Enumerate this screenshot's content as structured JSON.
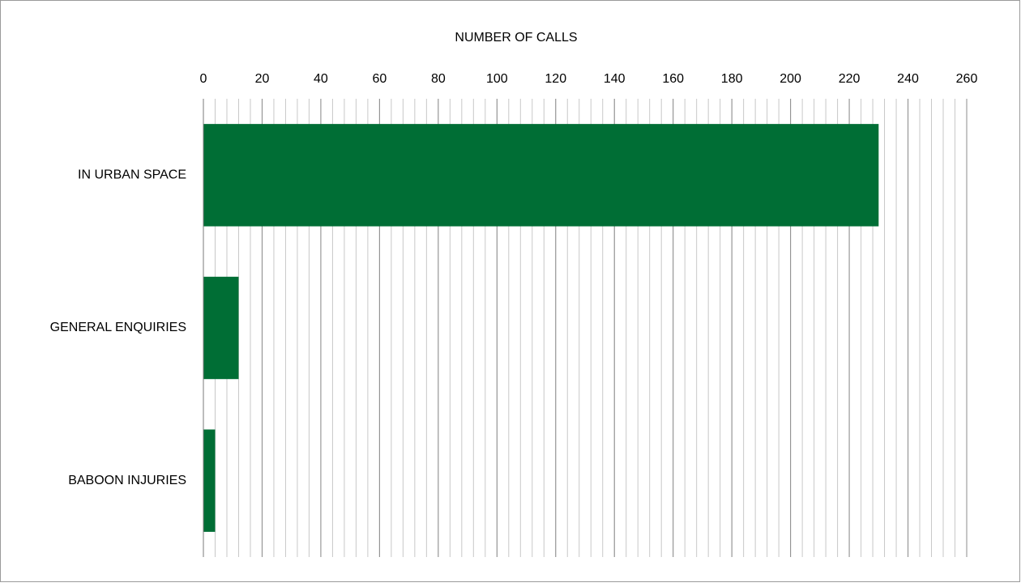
{
  "chart_data": {
    "type": "bar",
    "orientation": "horizontal",
    "title": "NUMBER OF CALLS",
    "categories": [
      "IN URBAN SPACE",
      "GENERAL ENQUIRIES",
      "BABOON INJURIES"
    ],
    "values": [
      230,
      12,
      4
    ],
    "color": "#006e35",
    "xlim": [
      0,
      260
    ],
    "xticks": [
      0,
      20,
      40,
      60,
      80,
      100,
      120,
      140,
      160,
      180,
      200,
      220,
      240,
      260
    ],
    "grid": true,
    "minor_grid": 4
  }
}
